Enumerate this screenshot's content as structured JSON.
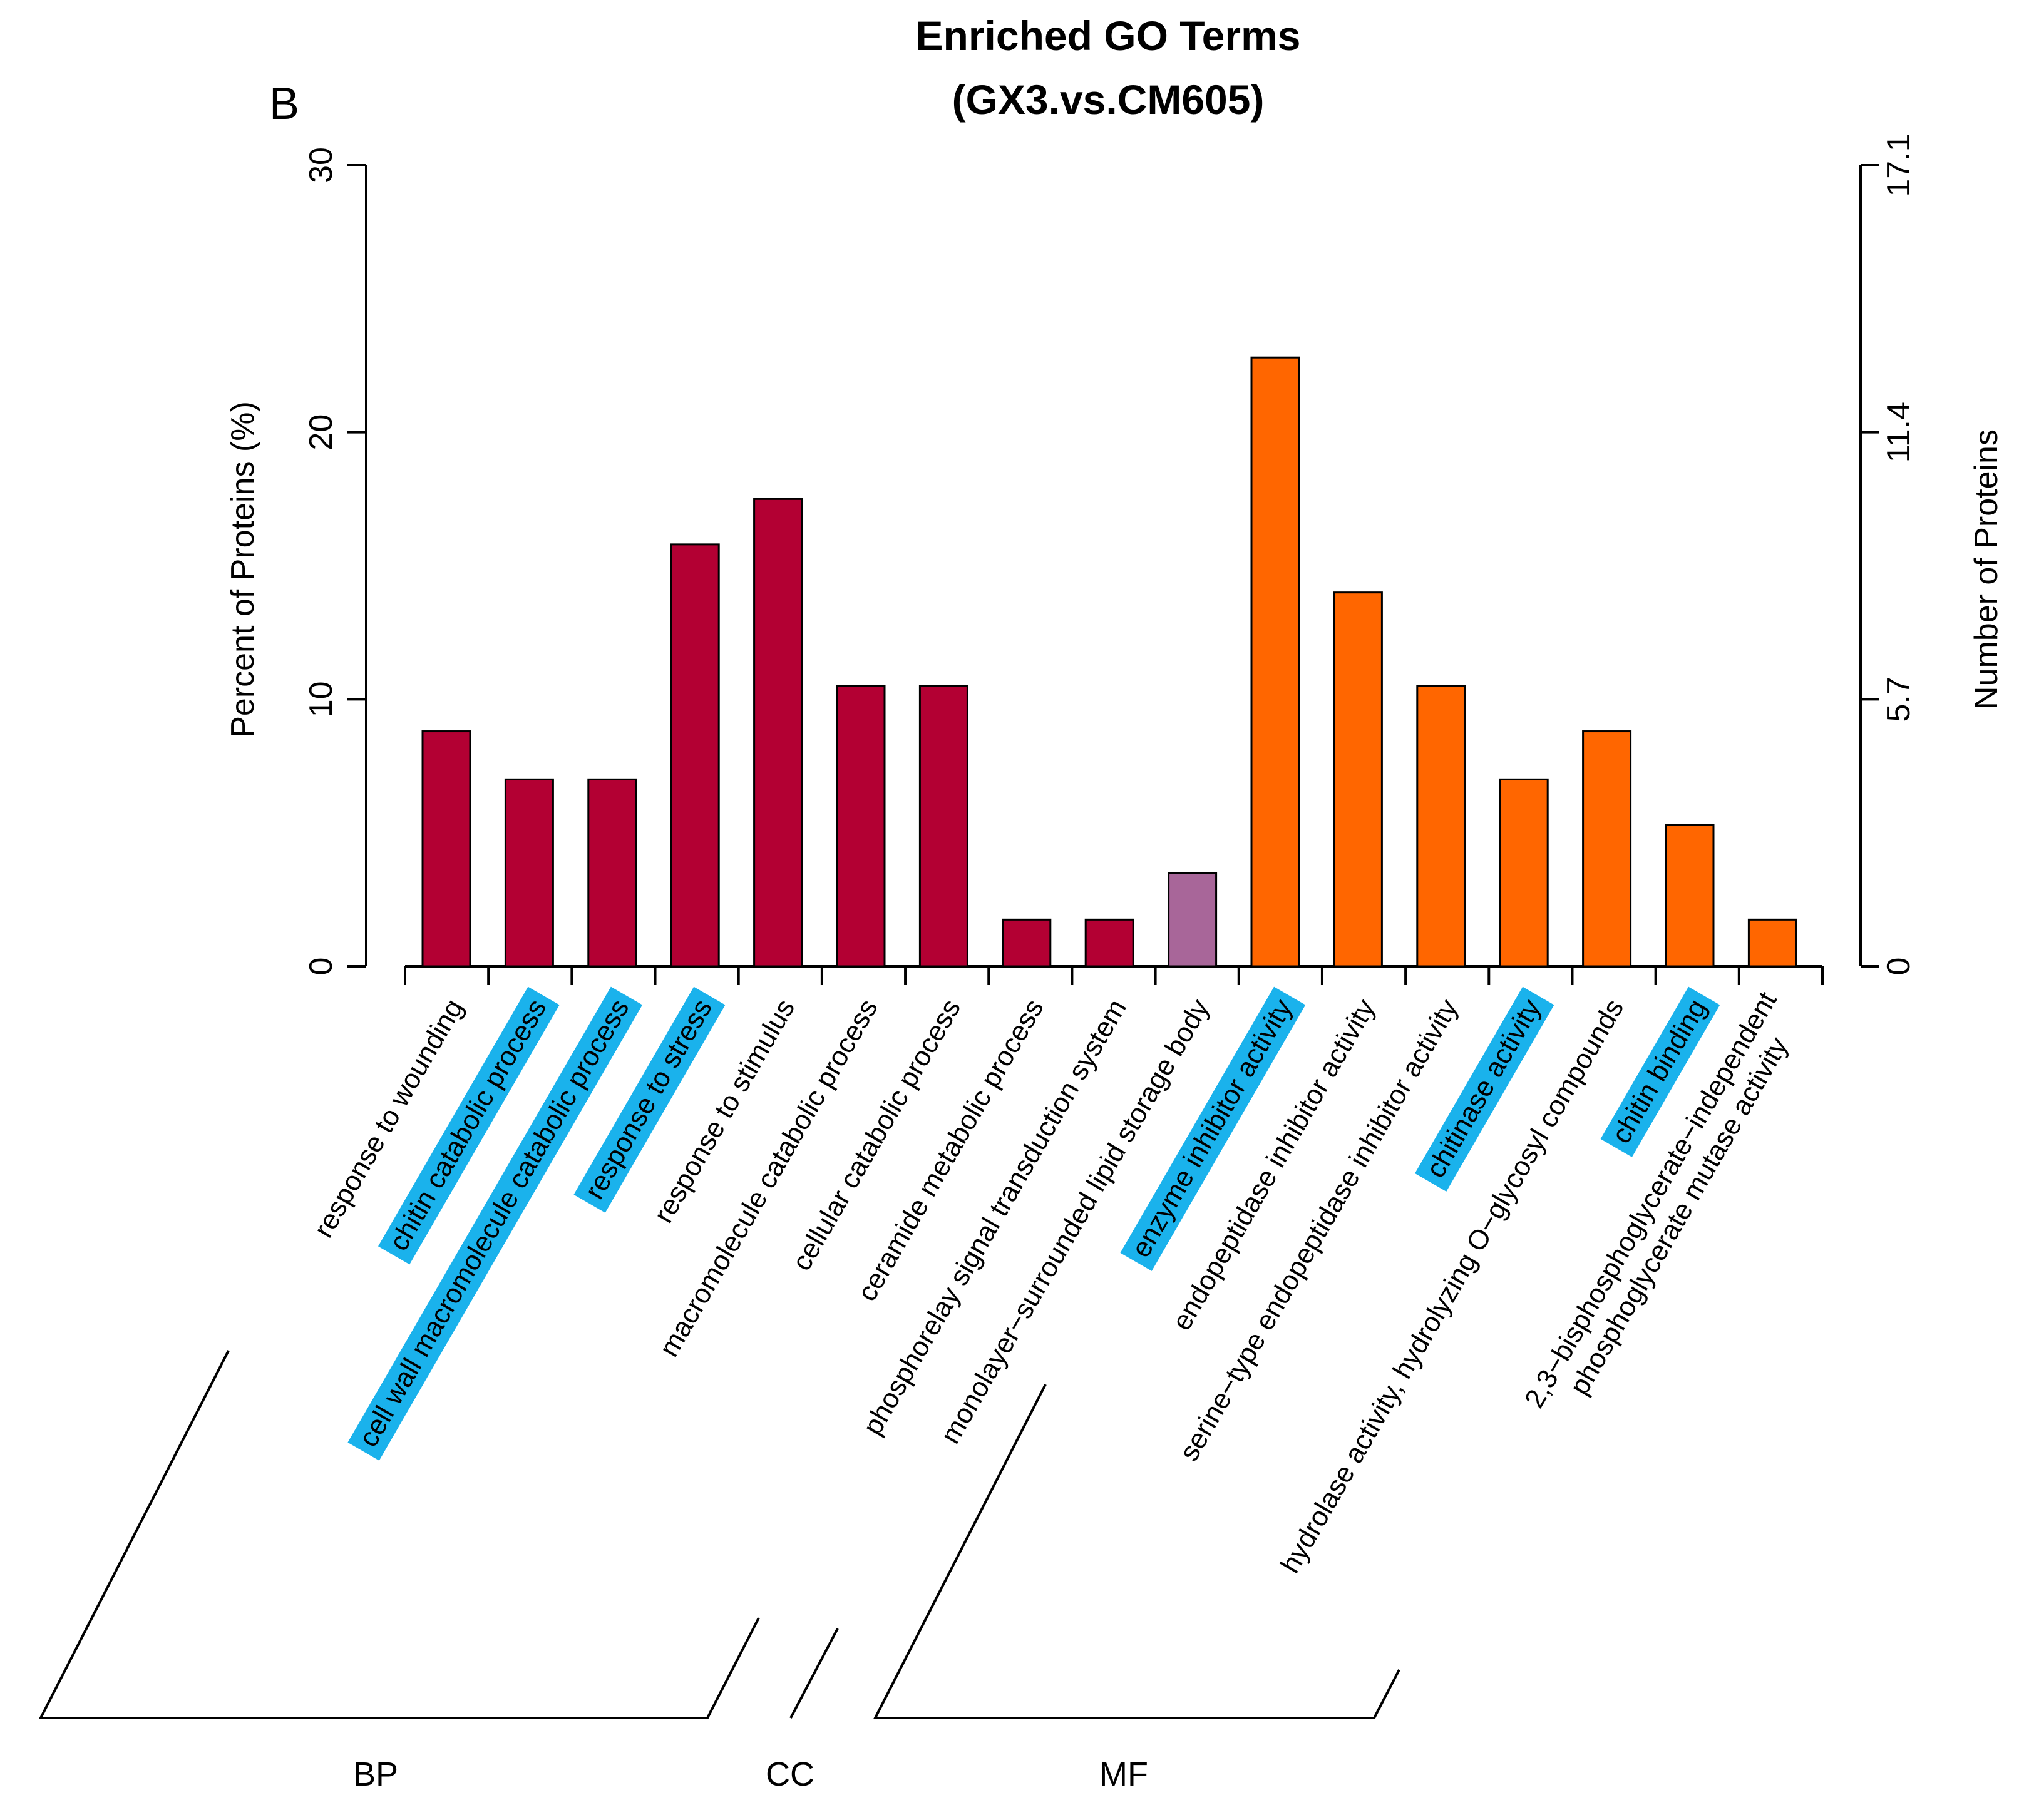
{
  "chart_data": {
    "type": "bar",
    "title": "Enriched GO Terms",
    "subtitle": "(GX3.vs.CM605)",
    "panel_letter": "B",
    "ylabel_left": "Percent of Proteins (%)",
    "ylabel_right": "Number of Proteins",
    "ylim_left": [
      0,
      30
    ],
    "ylim_right": [
      0,
      17.1
    ],
    "yticks_left": [
      "0",
      "10",
      "20",
      "30"
    ],
    "yticks_right": [
      "0",
      "5.7",
      "11.4",
      "17.1"
    ],
    "categories": [
      {
        "label": "response to wounding",
        "value": 8.8,
        "group": "BP",
        "highlight": false
      },
      {
        "label": "chitin catabolic process",
        "value": 7.0,
        "group": "BP",
        "highlight": true
      },
      {
        "label": "cell wall macromolecule catabolic process",
        "value": 7.0,
        "group": "BP",
        "highlight": true
      },
      {
        "label": "response to stress",
        "value": 15.8,
        "group": "BP",
        "highlight": true
      },
      {
        "label": "response to stimulus",
        "value": 17.5,
        "group": "BP",
        "highlight": false
      },
      {
        "label": "macromolecule catabolic process",
        "value": 10.5,
        "group": "BP",
        "highlight": false
      },
      {
        "label": "cellular catabolic process",
        "value": 10.5,
        "group": "BP",
        "highlight": false
      },
      {
        "label": "ceramide metabolic process",
        "value": 1.75,
        "group": "BP",
        "highlight": false
      },
      {
        "label": "phosphorelay signal transduction system",
        "value": 1.75,
        "group": "BP",
        "highlight": false
      },
      {
        "label": "monolayer−surrounded lipid storage body",
        "value": 3.5,
        "group": "CC",
        "highlight": false
      },
      {
        "label": "enzyme inhibitor activity",
        "value": 22.8,
        "group": "MF",
        "highlight": true
      },
      {
        "label": "endopeptidase inhibitor activity",
        "value": 14.0,
        "group": "MF",
        "highlight": false
      },
      {
        "label": "serine−type endopeptidase inhibitor activity",
        "value": 10.5,
        "group": "MF",
        "highlight": false
      },
      {
        "label": "chitinase activity",
        "value": 7.0,
        "group": "MF",
        "highlight": true
      },
      {
        "label": "hydrolase activity, hydrolyzing O−glycosyl compounds",
        "value": 8.8,
        "group": "MF",
        "highlight": false
      },
      {
        "label": "chitin binding",
        "value": 5.3,
        "group": "MF",
        "highlight": true
      },
      {
        "label": "2,3−bisphosphoglycerate−independent phosphoglycerate mutase activity",
        "value": 1.75,
        "group": "MF",
        "highlight": false
      }
    ],
    "groups": [
      {
        "name": "BP",
        "color": "#b30033"
      },
      {
        "name": "CC",
        "color": "#a86699"
      },
      {
        "name": "MF",
        "color": "#ff6600"
      }
    ],
    "highlight_color": "#1ab2ec"
  }
}
